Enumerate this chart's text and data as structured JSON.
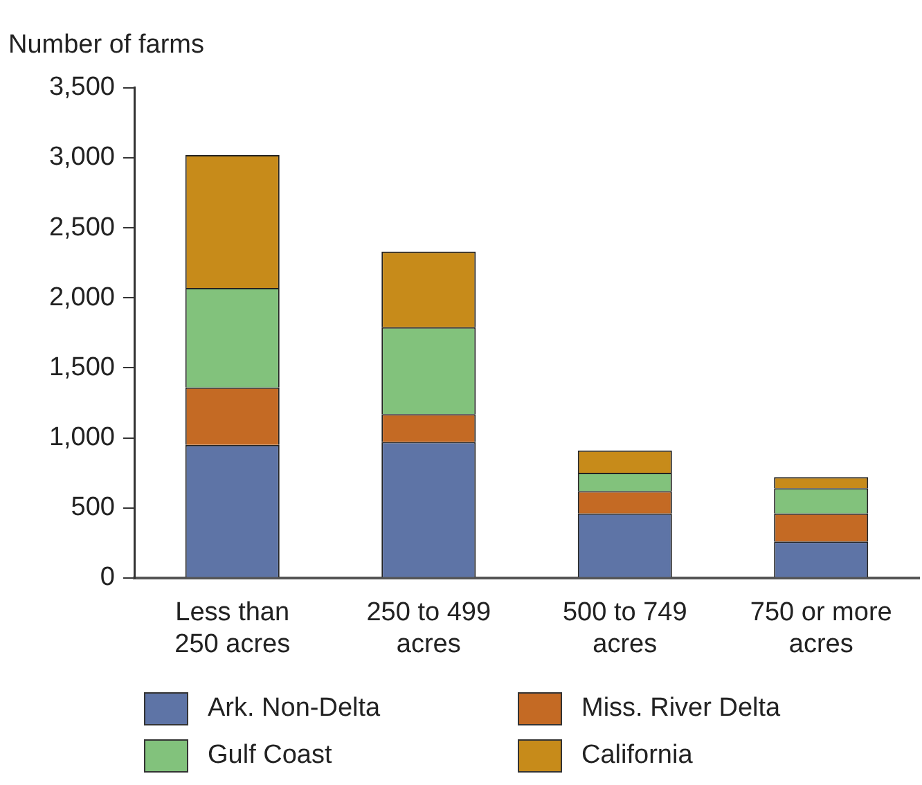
{
  "chart_data": {
    "type": "bar",
    "stacked": true,
    "ylabel": "Number of farms",
    "categories": [
      "Less than 250 acres",
      "250 to 499 acres",
      "500 to 749 acres",
      "750 or more acres"
    ],
    "series": [
      {
        "name": "Ark. Non-Delta",
        "color": "#5e74a6",
        "values": [
          950,
          970,
          460,
          260
        ]
      },
      {
        "name": "Miss. River Delta",
        "color": "#c46a24",
        "values": [
          410,
          200,
          160,
          200
        ]
      },
      {
        "name": "Gulf Coast",
        "color": "#82c27c",
        "values": [
          710,
          620,
          130,
          180
        ]
      },
      {
        "name": "California",
        "color": "#c78b1a",
        "values": [
          950,
          540,
          160,
          80
        ]
      }
    ],
    "ylim": [
      0,
      3500
    ],
    "yticks": [
      0,
      500,
      {
        "value": 1000,
        "label": "1,000"
      },
      {
        "value": 1500,
        "label": "1,500"
      },
      {
        "value": 2000,
        "label": "2,000"
      },
      {
        "value": 2500,
        "label": "2,500"
      },
      {
        "value": 3000,
        "label": "3,000"
      },
      {
        "value": 3500,
        "label": "3,500"
      }
    ],
    "grid": false,
    "legend": "bottom"
  }
}
